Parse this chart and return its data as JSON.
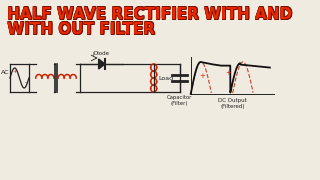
{
  "title_line1": "HALF WAVE RECTIFIER WITH AND",
  "title_line2": "WITH OUT FILTER",
  "title_color": "#E82800",
  "title_outline_color": "#7A1000",
  "bg_color": "#F0EBE0",
  "circuit_color": "#222222",
  "ac_label": "AC",
  "diode_label": "Diode",
  "load_label": "Load",
  "capacitor_label": "Capacitor\n(Filter)",
  "dc_output_label": "DC Output\n(Filtered)",
  "coil_color": "#CC2200",
  "ripple_color": "#CC2200",
  "envelope_color": "#111111",
  "title_fontsize": 11.0,
  "circuit_lw": 0.9,
  "coil_lw": 1.1
}
